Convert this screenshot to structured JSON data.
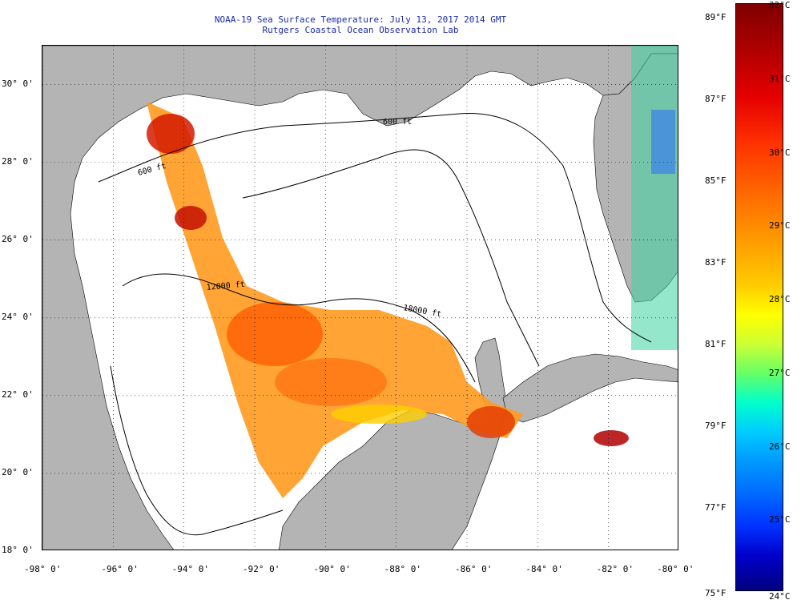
{
  "title": {
    "line1": "NOAA-19 Sea Surface Temperature:  July 13, 2017 2014 GMT",
    "line2": "Rutgers Coastal Ocean Observation Lab"
  },
  "map": {
    "lon_range": [
      -98,
      -80
    ],
    "lat_range": [
      18,
      31
    ],
    "lon_ticks": [
      {
        "value": -98,
        "label": "-98° 0'"
      },
      {
        "value": -96,
        "label": "-96° 0'"
      },
      {
        "value": -94,
        "label": "-94° 0'"
      },
      {
        "value": -92,
        "label": "-92° 0'"
      },
      {
        "value": -90,
        "label": "-90° 0'"
      },
      {
        "value": -88,
        "label": "-88° 0'"
      },
      {
        "value": -86,
        "label": "-86° 0'"
      },
      {
        "value": -84,
        "label": "-84° 0'"
      },
      {
        "value": -82,
        "label": "-82° 0'"
      },
      {
        "value": -80,
        "label": "-80° 0'"
      }
    ],
    "lat_ticks": [
      {
        "value": 30,
        "label": "30° 0'"
      },
      {
        "value": 28,
        "label": "28° 0'"
      },
      {
        "value": 26,
        "label": "26° 0'"
      },
      {
        "value": 24,
        "label": "24° 0'"
      },
      {
        "value": 22,
        "label": "22° 0'"
      },
      {
        "value": 20,
        "label": "20° 0'"
      },
      {
        "value": 18,
        "label": "18° 0'"
      }
    ],
    "contour_labels": [
      "600 ft",
      "12000 ft",
      "18000 ft",
      "600 ft"
    ],
    "colors": {
      "land": "#b4b4b4",
      "ocean_no_data": "#ffffff",
      "contour": "#000000",
      "grid": "#000000"
    }
  },
  "colorbar": {
    "range_c": [
      24,
      32
    ],
    "range_f": [
      75,
      89
    ],
    "celsius_labels": [
      {
        "value": 32,
        "label": "32°C"
      },
      {
        "value": 31,
        "label": "31°C"
      },
      {
        "value": 30,
        "label": "30°C"
      },
      {
        "value": 29,
        "label": "29°C"
      },
      {
        "value": 28,
        "label": "28°C"
      },
      {
        "value": 27,
        "label": "27°C"
      },
      {
        "value": 26,
        "label": "26°C"
      },
      {
        "value": 25,
        "label": "25°C"
      },
      {
        "value": 24,
        "label": "24°C"
      }
    ],
    "fahrenheit_labels": [
      {
        "value": 89,
        "label": "89°F"
      },
      {
        "value": 87,
        "label": "87°F"
      },
      {
        "value": 85,
        "label": "85°F"
      },
      {
        "value": 83,
        "label": "83°F"
      },
      {
        "value": 81,
        "label": "81°F"
      },
      {
        "value": 79,
        "label": "79°F"
      },
      {
        "value": 77,
        "label": "77°F"
      },
      {
        "value": 75,
        "label": "75°F"
      }
    ]
  }
}
